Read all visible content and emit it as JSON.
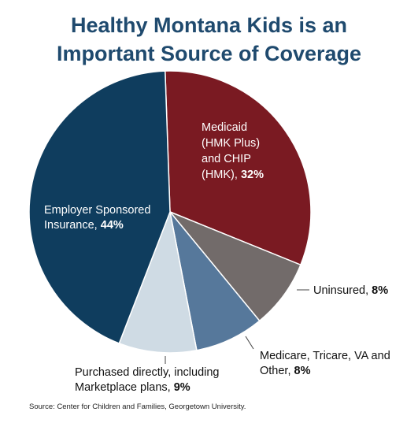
{
  "title": {
    "line1": "Healthy Montana Kids is an",
    "line2": "Important Source of Coverage"
  },
  "chart_data": {
    "type": "pie",
    "title": "Healthy Montana Kids is an Important Source of Coverage",
    "start_angle_deg": -2,
    "direction": "clockwise",
    "slices": [
      {
        "key": "medicaid",
        "value": 32,
        "color": "#7a1a22",
        "label_lines": [
          "Medicaid",
          "(HMK Plus)",
          "and CHIP",
          "(HMK), "
        ],
        "value_label": "32%"
      },
      {
        "key": "uninsured",
        "value": 8,
        "color": "#726b6a",
        "label_lines": [
          "Uninsured, "
        ],
        "value_label": "8%"
      },
      {
        "key": "medicare",
        "value": 8,
        "color": "#56789b",
        "label_lines": [
          "Medicare, Tricare, VA and",
          "Other, "
        ],
        "value_label": "8%"
      },
      {
        "key": "purchased",
        "value": 9,
        "color": "#cfdbe4",
        "label_lines": [
          "Purchased directly, including",
          "Marketplace plans, "
        ],
        "value_label": "9%"
      },
      {
        "key": "employer",
        "value": 44,
        "color": "#0f3d5e",
        "label_lines": [
          "Employer Sponsored",
          "Insurance, "
        ],
        "value_label": "44%"
      }
    ]
  },
  "source": "Source: Center for Children and Families, Georgetown University."
}
